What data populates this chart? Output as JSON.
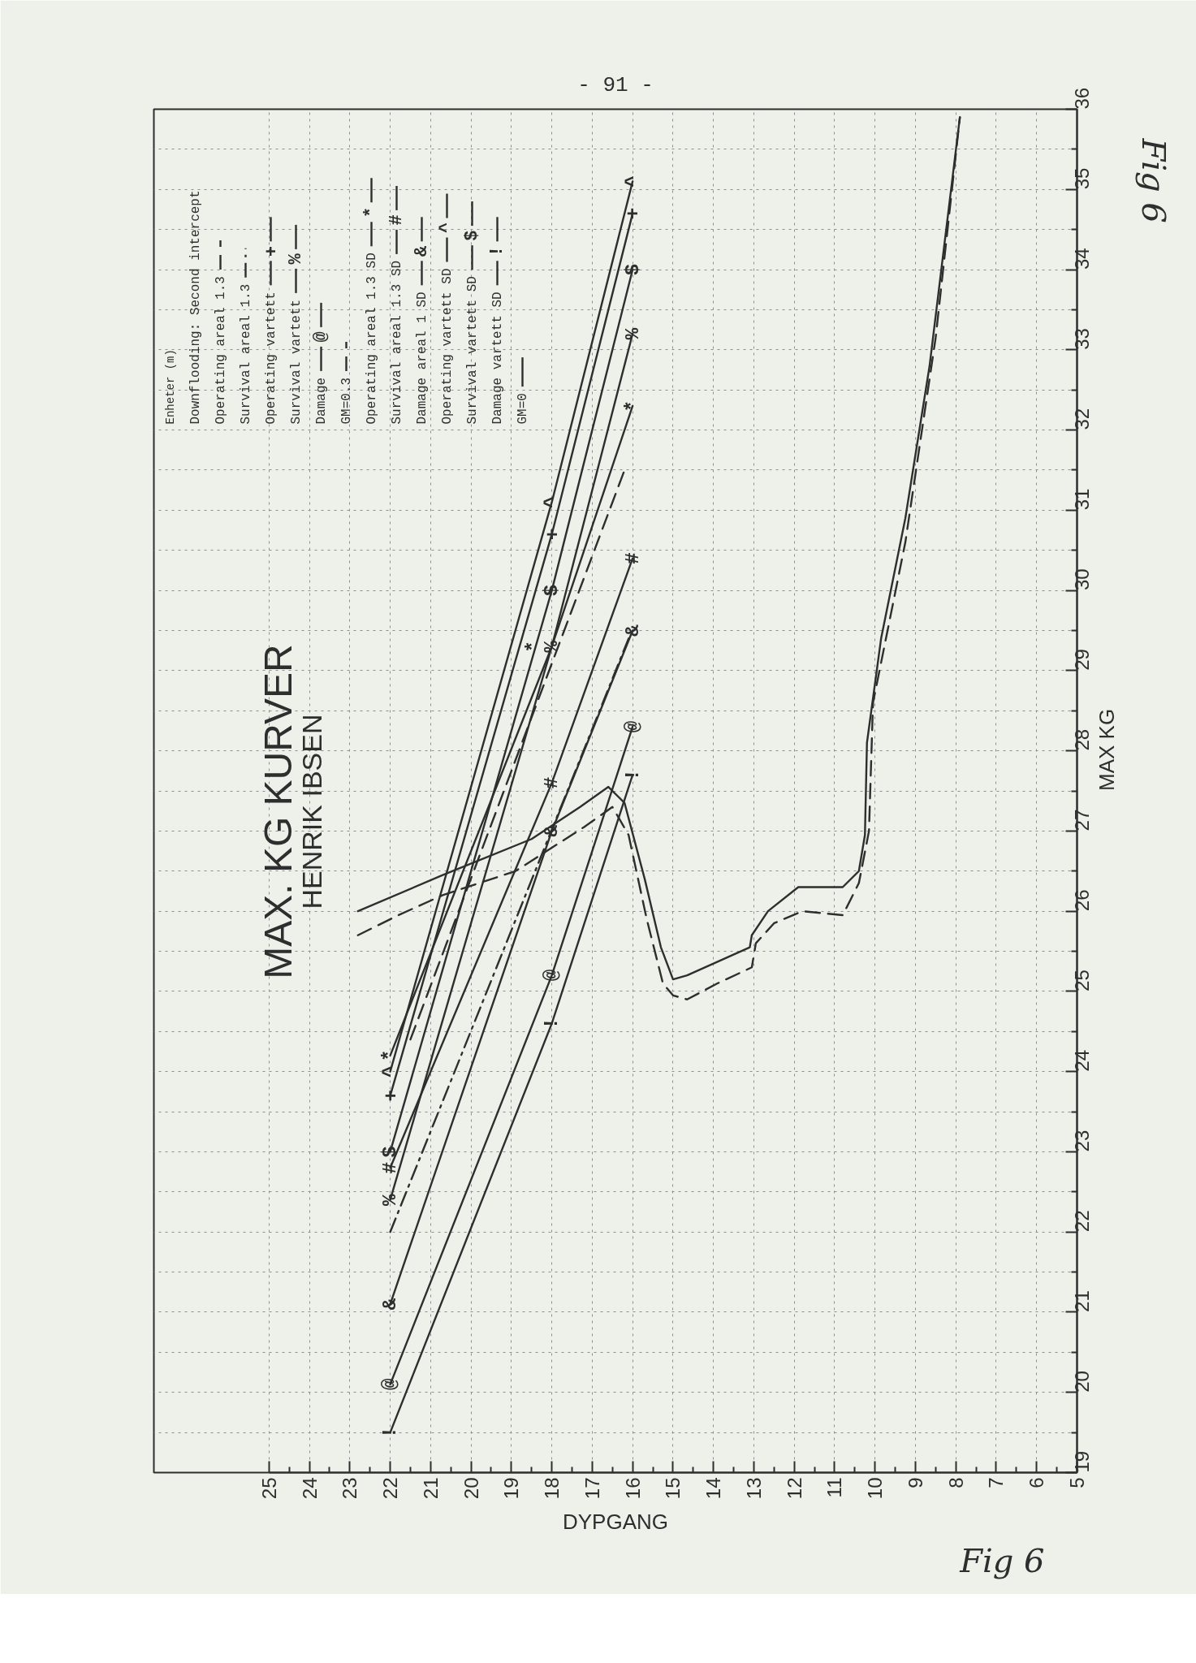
{
  "chart_data": {
    "type": "line",
    "title": "MAX. KG KURVER",
    "subtitle": "HENRIK IBSEN",
    "xlabel": "DYPGANG",
    "ylabel": "MAX KG",
    "legend_title": "Downflooding: Second intercept",
    "annotations": [
      "Enheter (m)",
      "- 91 -",
      "Fig 6",
      "Fig 6"
    ],
    "xlim": [
      25,
      5
    ],
    "xticks": [
      25,
      24,
      23,
      22,
      21,
      20,
      19,
      18,
      17,
      16,
      15,
      14,
      13,
      12,
      11,
      10,
      9,
      8,
      7,
      6,
      5
    ],
    "ylim": [
      19,
      36
    ],
    "yticks": [
      19,
      20,
      21,
      22,
      23,
      24,
      25,
      26,
      27,
      28,
      29,
      30,
      31,
      32,
      33,
      34,
      35,
      36
    ],
    "grid": true,
    "legend": "top left",
    "series": [
      {
        "name": "Operating areal 1.3",
        "color": "#2e2e2e",
        "line_style": "dashed",
        "x": [
          21.5,
          16.2
        ],
        "values": [
          24.4,
          31.5
        ]
      },
      {
        "name": "Survival areal 1.3",
        "color": "#2e2e2e",
        "line_style": "dashdot",
        "x": [
          22,
          16.1
        ],
        "values": [
          22.0,
          29.4
        ]
      },
      {
        "name": "Operating vartett",
        "color": "#2e2e2e",
        "line_style": "solid",
        "x": [
          22,
          18,
          16
        ],
        "values": [
          23.7,
          30.7,
          34.7
        ],
        "value_labels": [
          "+",
          "+",
          "+"
        ]
      },
      {
        "name": "Survival vartett",
        "color": "#2e2e2e",
        "line_style": "solid",
        "x": [
          22,
          18,
          16
        ],
        "values": [
          22.4,
          29.3,
          33.2
        ],
        "value_labels": [
          "%",
          "%",
          "%"
        ]
      },
      {
        "name": "Damage",
        "color": "#2e2e2e",
        "line_style": "solid",
        "x": [
          22,
          18,
          16
        ],
        "values": [
          20.1,
          25.2,
          28.3
        ],
        "value_labels": [
          "@",
          "@",
          "@"
        ]
      },
      {
        "name": "GM=0.3",
        "color": "#2e2e2e",
        "line_style": "dashed",
        "x": [
          22.8,
          21.8,
          20.7,
          18.9,
          17.2,
          16.5,
          16.1,
          15.65,
          15.25,
          15.0,
          14.65,
          13.9,
          13.05,
          12.95,
          12.5,
          11.8,
          10.8,
          10.4,
          10.15,
          10.05,
          9.25,
          8.5,
          7.9
        ],
        "values": [
          25.7,
          25.95,
          26.2,
          26.5,
          27.05,
          27.3,
          26.95,
          25.9,
          25.1,
          24.95,
          24.9,
          25.1,
          25.3,
          25.6,
          25.85,
          26.0,
          25.95,
          26.35,
          27.0,
          28.6,
          30.6,
          33.15,
          35.9
        ]
      },
      {
        "name": "Operating areal 1.3 SD",
        "color": "#2e2e2e",
        "line_style": "solid",
        "x": [
          22,
          18,
          16
        ],
        "values": [
          24.2,
          29.3,
          32.3
        ],
        "value_labels": [
          "*",
          "*",
          "*"
        ]
      },
      {
        "name": "Survival areal 1.3 SD",
        "color": "#2e2e2e",
        "line_style": "solid",
        "x": [
          22,
          18,
          16
        ],
        "values": [
          22.8,
          27.6,
          30.4
        ],
        "value_labels": [
          "#",
          "#",
          "#"
        ]
      },
      {
        "name": "Damage areal 1 SD",
        "color": "#2e2e2e",
        "line_style": "solid",
        "x": [
          22,
          18,
          16
        ],
        "values": [
          21.1,
          27.0,
          29.5
        ],
        "value_labels": [
          "&",
          "&",
          "&"
        ]
      },
      {
        "name": "Operating vartett SD",
        "color": "#2e2e2e",
        "line_style": "solid",
        "x": [
          22,
          18,
          16
        ],
        "values": [
          24.0,
          31.1,
          35.1
        ],
        "value_labels": [
          "^",
          "^",
          "^"
        ]
      },
      {
        "name": "Survival vartett SD",
        "color": "#2e2e2e",
        "line_style": "solid",
        "x": [
          22,
          18,
          16
        ],
        "values": [
          23.0,
          30.0,
          34.0
        ],
        "value_labels": [
          "$",
          "$",
          "$"
        ]
      },
      {
        "name": "Damage vartett SD",
        "color": "#2e2e2e",
        "line_style": "solid",
        "x": [
          22,
          18,
          16
        ],
        "values": [
          19.5,
          24.6,
          27.7
        ],
        "value_labels": [
          "!",
          "!",
          "!"
        ]
      },
      {
        "name": "GM=0",
        "color": "#2e2e2e",
        "line_style": "solid",
        "x": [
          22.8,
          20.7,
          18.5,
          17.3,
          16.6,
          16.2,
          15.7,
          15.3,
          15.0,
          14.65,
          13.1,
          13.05,
          12.65,
          11.9,
          10.8,
          10.4,
          10.25,
          10.2,
          9.85,
          9.25,
          8.65,
          7.9
        ],
        "values": [
          26.0,
          26.45,
          26.9,
          27.3,
          27.55,
          27.35,
          26.4,
          25.55,
          25.15,
          25.2,
          25.55,
          25.7,
          26.0,
          26.3,
          26.3,
          26.5,
          26.95,
          28.1,
          29.4,
          30.9,
          32.8,
          35.9
        ]
      }
    ]
  }
}
